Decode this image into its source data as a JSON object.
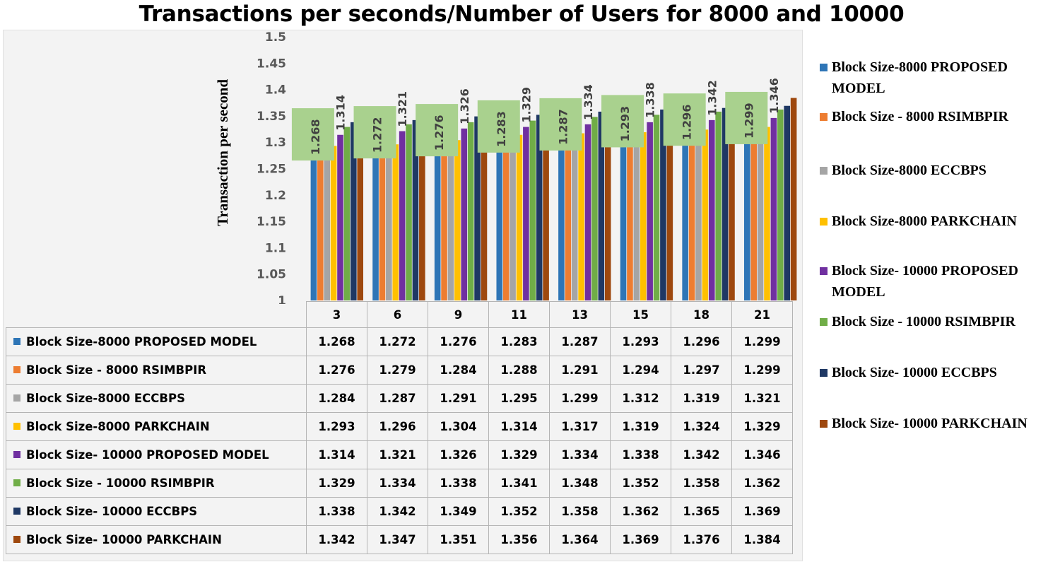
{
  "chart_data": {
    "type": "bar",
    "title": "Transactions per seconds/Number of Users for 8000 and 10000",
    "xlabel": "",
    "ylabel": "Transaction per second",
    "ylim": [
      1,
      1.5
    ],
    "yticks": [
      "1",
      "1.05",
      "1.1",
      "1.15",
      "1.2",
      "1.25",
      "1.3",
      "1.35",
      "1.4",
      "1.45",
      "1.5"
    ],
    "grid": false,
    "legend_position": "right",
    "data_table": true,
    "categories": [
      "3",
      "6",
      "9",
      "11",
      "13",
      "15",
      "18",
      "21"
    ],
    "series": [
      {
        "name": "Block Size-8000 PROPOSED MODEL",
        "legend_label": "Block Size-8000 PROPOSED MODEL",
        "color": "#2e75b6",
        "values": [
          1.268,
          1.272,
          1.276,
          1.283,
          1.287,
          1.293,
          1.296,
          1.299
        ],
        "labels": [
          "1.268",
          "1.272",
          "1.276",
          "1.283",
          "1.287",
          "1.293",
          "1.296",
          "1.299"
        ]
      },
      {
        "name": "Block Size - 8000 RSIMBPIR",
        "legend_label": "Block Size - 8000 RSIMBPIR",
        "color": "#ed7d31",
        "values": [
          1.276,
          1.279,
          1.284,
          1.288,
          1.291,
          1.294,
          1.297,
          1.299
        ],
        "labels": [
          "1.276",
          "1.279",
          "1.284",
          "1.288",
          "1.291",
          "1.294",
          "1.297",
          "1.299"
        ]
      },
      {
        "name": "Block Size-8000 ECCBPS",
        "legend_label": "Block Size-8000 ECCBPS",
        "color": "#a5a5a5",
        "values": [
          1.284,
          1.287,
          1.291,
          1.295,
          1.299,
          1.312,
          1.319,
          1.321
        ],
        "labels": [
          "1.284",
          "1.287",
          "1.291",
          "1.295",
          "1.299",
          "1.312",
          "1.319",
          "1.321"
        ]
      },
      {
        "name": "Block Size-8000 PARKCHAIN",
        "legend_label": "Block Size-8000 PARKCHAIN",
        "color": "#ffc000",
        "values": [
          1.293,
          1.296,
          1.304,
          1.314,
          1.317,
          1.319,
          1.324,
          1.329
        ],
        "labels": [
          "1.293",
          "1.296",
          "1.304",
          "1.314",
          "1.317",
          "1.319",
          "1.324",
          "1.329"
        ]
      },
      {
        "name": "Block Size- 10000 PROPOSED MODEL",
        "legend_label": "Block Size- 10000 PROPOSED MODEL",
        "color": "#7030a0",
        "values": [
          1.314,
          1.321,
          1.326,
          1.329,
          1.334,
          1.338,
          1.342,
          1.346
        ],
        "labels": [
          "1.314",
          "1.321",
          "1.326",
          "1.329",
          "1.334",
          "1.338",
          "1.342",
          "1.346"
        ]
      },
      {
        "name": "Block Size - 10000 RSIMBPIR",
        "legend_label": "Block Size - 10000 RSIMBPIR",
        "color": "#70ad47",
        "values": [
          1.329,
          1.334,
          1.338,
          1.341,
          1.348,
          1.352,
          1.358,
          1.362
        ],
        "labels": [
          "1.329",
          "1.334",
          "1.338",
          "1.341",
          "1.348",
          "1.352",
          "1.358",
          "1.362"
        ]
      },
      {
        "name": "Block Size- 10000 ECCBPS",
        "legend_label": "Block Size- 10000 ECCBPS",
        "color": "#1f3864",
        "values": [
          1.338,
          1.342,
          1.349,
          1.352,
          1.358,
          1.362,
          1.365,
          1.369
        ],
        "labels": [
          "1.338",
          "1.342",
          "1.349",
          "1.352",
          "1.358",
          "1.362",
          "1.365",
          "1.369"
        ]
      },
      {
        "name": "Block Size- 10000 PARKCHAIN",
        "legend_label": "Block Size- 10000 PARKCHAIN",
        "color": "#9e480e",
        "values": [
          1.342,
          1.347,
          1.351,
          1.356,
          1.364,
          1.369,
          1.376,
          1.384
        ],
        "labels": [
          "1.342",
          "1.347",
          "1.351",
          "1.356",
          "1.364",
          "1.369",
          "1.376",
          "1.384"
        ]
      }
    ],
    "annotations": {
      "labeled_series": [
        0,
        4
      ],
      "label_rotation": "vertical",
      "highlighted_label_series": 0,
      "highlight_color": "#a9d18e"
    }
  }
}
